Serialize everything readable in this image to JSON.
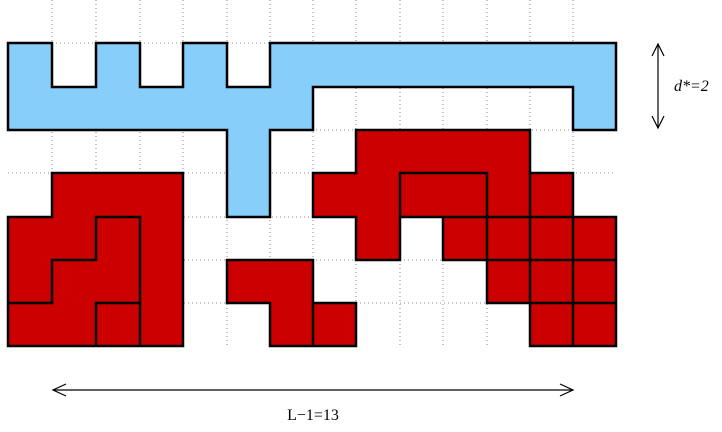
{
  "colors": {
    "light_blue": "#87CEFA",
    "red": "#CC0000",
    "outline": "#000000",
    "grid": "#555555"
  },
  "labels": {
    "d_star": "d*=2",
    "L_minus_1": "L−1=13"
  }
}
